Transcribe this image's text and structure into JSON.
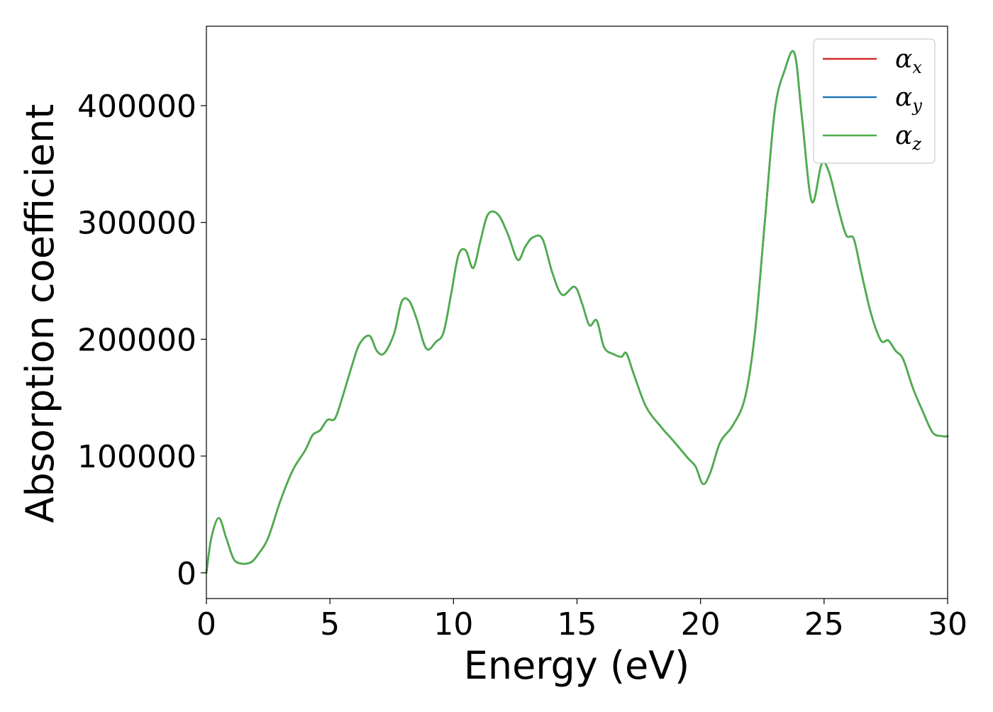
{
  "chart_data": {
    "type": "line",
    "title": "",
    "xlabel": "Energy (eV)",
    "ylabel": "Absorption coefficient",
    "xlim": [
      0,
      30
    ],
    "ylim": [
      -22000,
      468000
    ],
    "xticks": [
      0,
      5,
      10,
      15,
      20,
      25,
      30
    ],
    "xtick_labels": [
      "0",
      "5",
      "10",
      "15",
      "20",
      "25",
      "30"
    ],
    "yticks": [
      0,
      100000,
      200000,
      300000,
      400000
    ],
    "ytick_labels": [
      "0",
      "100000",
      "200000",
      "300000",
      "400000"
    ],
    "grid": false,
    "legend_position": "top-right",
    "legend": [
      {
        "symbol": "α",
        "subscript": "x",
        "color": "#d62728"
      },
      {
        "symbol": "α",
        "subscript": "y",
        "color": "#1f77b4"
      },
      {
        "symbol": "α",
        "subscript": "z",
        "color": "#4daf4a"
      }
    ],
    "series": [
      {
        "name": "αx",
        "color": "#d62728",
        "x": [
          0,
          0.2,
          0.5,
          0.8,
          1.1,
          1.4,
          1.8,
          2.1,
          2.5,
          3.0,
          3.5,
          4.0,
          4.3,
          4.6,
          4.9,
          5.2,
          5.5,
          5.9,
          6.2,
          6.6,
          6.9,
          7.2,
          7.6,
          7.9,
          8.2,
          8.5,
          8.9,
          9.3,
          9.6,
          9.9,
          10.2,
          10.5,
          10.8,
          11.1,
          11.4,
          11.8,
          12.2,
          12.6,
          12.9,
          13.2,
          13.6,
          14.0,
          14.4,
          14.9,
          15.2,
          15.5,
          15.8,
          16.1,
          16.5,
          16.8,
          17.0,
          17.3,
          17.8,
          18.4,
          18.9,
          19.5,
          19.8,
          20.1,
          20.4,
          20.8,
          21.3,
          21.8,
          22.2,
          22.6,
          23.0,
          23.4,
          23.8,
          24.1,
          24.5,
          24.9,
          25.2,
          25.6,
          25.9,
          26.2,
          26.5,
          26.9,
          27.3,
          27.6,
          27.9,
          28.2,
          28.6,
          29.0,
          29.4,
          29.8,
          30.0
        ],
        "values": [
          0,
          30000,
          47000,
          30000,
          12000,
          8000,
          9000,
          16000,
          30000,
          62000,
          88000,
          105000,
          118000,
          122000,
          131000,
          132000,
          150000,
          178000,
          196000,
          203000,
          190000,
          188000,
          205000,
          232000,
          233000,
          218000,
          192000,
          198000,
          206000,
          238000,
          272000,
          276000,
          261000,
          285000,
          307000,
          307000,
          290000,
          268000,
          279000,
          287000,
          286000,
          257000,
          238000,
          245000,
          231000,
          212000,
          216000,
          193000,
          187000,
          185000,
          188000,
          170000,
          142000,
          125000,
          113000,
          98000,
          91000,
          76000,
          86000,
          112000,
          126000,
          150000,
          205000,
          300000,
          395000,
          430000,
          445000,
          391000,
          318000,
          350000,
          343000,
          310000,
          289000,
          286000,
          258000,
          222000,
          199000,
          199000,
          190000,
          183000,
          158000,
          138000,
          120000,
          117000,
          117000
        ]
      },
      {
        "name": "αy",
        "color": "#1f77b4",
        "x": [
          0,
          0.2,
          0.5,
          0.8,
          1.1,
          1.4,
          1.8,
          2.1,
          2.5,
          3.0,
          3.5,
          4.0,
          4.3,
          4.6,
          4.9,
          5.2,
          5.5,
          5.9,
          6.2,
          6.6,
          6.9,
          7.2,
          7.6,
          7.9,
          8.2,
          8.5,
          8.9,
          9.3,
          9.6,
          9.9,
          10.2,
          10.5,
          10.8,
          11.1,
          11.4,
          11.8,
          12.2,
          12.6,
          12.9,
          13.2,
          13.6,
          14.0,
          14.4,
          14.9,
          15.2,
          15.5,
          15.8,
          16.1,
          16.5,
          16.8,
          17.0,
          17.3,
          17.8,
          18.4,
          18.9,
          19.5,
          19.8,
          20.1,
          20.4,
          20.8,
          21.3,
          21.8,
          22.2,
          22.6,
          23.0,
          23.4,
          23.8,
          24.1,
          24.5,
          24.9,
          25.2,
          25.6,
          25.9,
          26.2,
          26.5,
          26.9,
          27.3,
          27.6,
          27.9,
          28.2,
          28.6,
          29.0,
          29.4,
          29.8,
          30.0
        ],
        "values": [
          0,
          30000,
          47000,
          30000,
          12000,
          8000,
          9000,
          16000,
          30000,
          62000,
          88000,
          105000,
          118000,
          122000,
          131000,
          132000,
          150000,
          178000,
          196000,
          203000,
          190000,
          188000,
          205000,
          232000,
          233000,
          218000,
          192000,
          198000,
          206000,
          238000,
          272000,
          276000,
          261000,
          285000,
          307000,
          307000,
          290000,
          268000,
          279000,
          287000,
          286000,
          257000,
          238000,
          245000,
          231000,
          212000,
          216000,
          193000,
          187000,
          185000,
          188000,
          170000,
          142000,
          125000,
          113000,
          98000,
          91000,
          76000,
          86000,
          112000,
          126000,
          150000,
          205000,
          300000,
          395000,
          430000,
          445000,
          391000,
          318000,
          350000,
          343000,
          310000,
          289000,
          286000,
          258000,
          222000,
          199000,
          199000,
          190000,
          183000,
          158000,
          138000,
          120000,
          117000,
          117000
        ]
      },
      {
        "name": "αz",
        "color": "#4daf4a",
        "x": [
          0,
          0.2,
          0.5,
          0.8,
          1.1,
          1.4,
          1.8,
          2.1,
          2.5,
          3.0,
          3.5,
          4.0,
          4.3,
          4.6,
          4.9,
          5.2,
          5.5,
          5.9,
          6.2,
          6.6,
          6.9,
          7.2,
          7.6,
          7.9,
          8.2,
          8.5,
          8.9,
          9.3,
          9.6,
          9.9,
          10.2,
          10.5,
          10.8,
          11.1,
          11.4,
          11.8,
          12.2,
          12.6,
          12.9,
          13.2,
          13.6,
          14.0,
          14.4,
          14.9,
          15.2,
          15.5,
          15.8,
          16.1,
          16.5,
          16.8,
          17.0,
          17.3,
          17.8,
          18.4,
          18.9,
          19.5,
          19.8,
          20.1,
          20.4,
          20.8,
          21.3,
          21.8,
          22.2,
          22.6,
          23.0,
          23.4,
          23.8,
          24.1,
          24.5,
          24.9,
          25.2,
          25.6,
          25.9,
          26.2,
          26.5,
          26.9,
          27.3,
          27.6,
          27.9,
          28.2,
          28.6,
          29.0,
          29.4,
          29.8,
          30.0
        ],
        "values": [
          0,
          30000,
          47000,
          30000,
          12000,
          8000,
          9000,
          16000,
          30000,
          62000,
          88000,
          105000,
          118000,
          122000,
          131000,
          132000,
          150000,
          178000,
          196000,
          203000,
          190000,
          188000,
          205000,
          232000,
          233000,
          218000,
          192000,
          198000,
          206000,
          238000,
          272000,
          276000,
          261000,
          285000,
          307000,
          307000,
          290000,
          268000,
          279000,
          287000,
          286000,
          257000,
          238000,
          245000,
          231000,
          212000,
          216000,
          193000,
          187000,
          185000,
          188000,
          170000,
          142000,
          125000,
          113000,
          98000,
          91000,
          76000,
          86000,
          112000,
          126000,
          150000,
          205000,
          300000,
          395000,
          430000,
          445000,
          391000,
          318000,
          350000,
          343000,
          310000,
          289000,
          286000,
          258000,
          222000,
          199000,
          199000,
          190000,
          183000,
          158000,
          138000,
          120000,
          117000,
          117000
        ]
      }
    ]
  }
}
